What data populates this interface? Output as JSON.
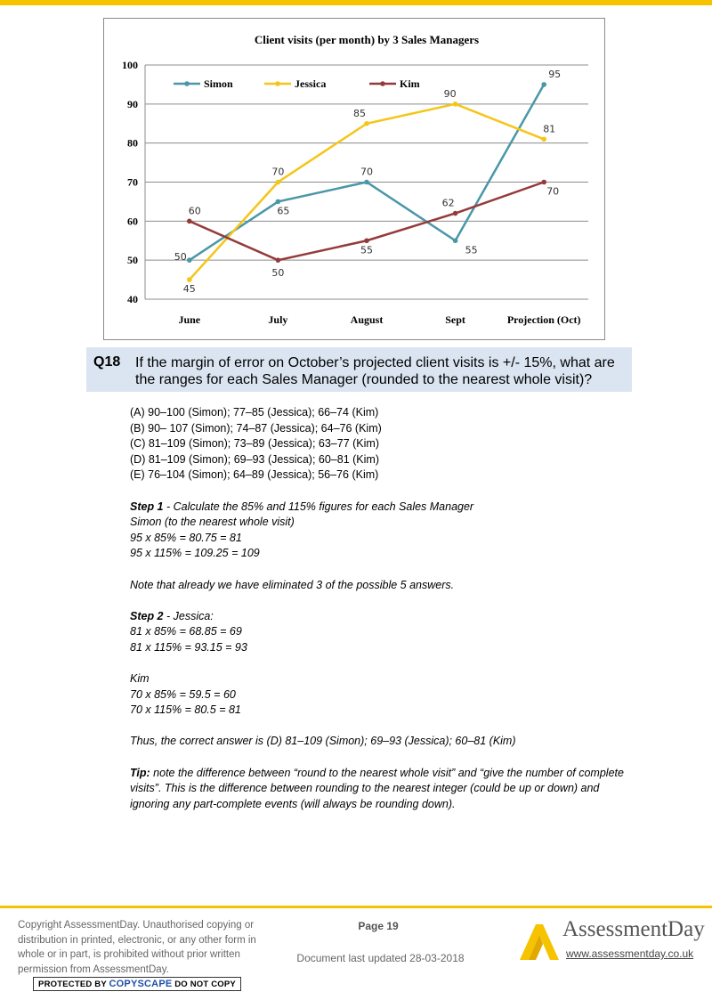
{
  "chart_data": {
    "type": "line",
    "title": "Client visits (per month) by 3 Sales Managers",
    "categories": [
      "June",
      "July",
      "August",
      "Sept",
      "Projection (Oct)"
    ],
    "ylim": [
      40,
      100
    ],
    "yticks": [
      40,
      50,
      60,
      70,
      80,
      90,
      100
    ],
    "grid": true,
    "legend": "top-left",
    "series": [
      {
        "name": "Simon",
        "color": "#4a97a8",
        "values": [
          50,
          65,
          70,
          55,
          95
        ]
      },
      {
        "name": "Jessica",
        "color": "#f5c518",
        "values": [
          45,
          70,
          85,
          90,
          81
        ]
      },
      {
        "name": "Kim",
        "color": "#953a3a",
        "values": [
          60,
          50,
          55,
          62,
          70
        ]
      }
    ]
  },
  "question": {
    "number": "Q18",
    "text": "If the margin of error on October’s projected client visits is +/- 15%, what are the ranges for each Sales Manager (rounded to the nearest whole visit)?"
  },
  "options": [
    "(A) 90–100 (Simon); 77–85 (Jessica); 66–74 (Kim)",
    "(B) 90– 107 (Simon); 74–87 (Jessica); 64–76 (Kim)",
    "(C) 81–109 (Simon); 73–89 (Jessica); 63–77 (Kim)",
    "(D) 81–109 (Simon); 69–93 (Jessica); 60–81 (Kim)",
    "(E) 76–104 (Simon); 64–89 (Jessica); 56–76 (Kim)"
  ],
  "solution": {
    "step1_label": "Step 1",
    "step1_text": " - Calculate the 85% and 115% figures for each Sales Manager",
    "simon_label": "Simon (to the nearest whole visit)",
    "simon_calc1": "95 x 85% = 80.75 = 81",
    "simon_calc2": "95 x 115% = 109.25 = 109",
    "note": "Note that already we have eliminated 3 of the possible 5 answers.",
    "step2_label": "Step 2",
    "step2_text": " - Jessica:",
    "jessica_calc1": "81 x 85% = 68.85 = 69",
    "jessica_calc2": "81 x 115% = 93.15 = 93",
    "kim_label": "Kim",
    "kim_calc1": "70 x 85% = 59.5 = 60",
    "kim_calc2": "70 x 115% = 80.5 = 81",
    "conclusion": "Thus, the correct answer is (D) 81–109 (Simon); 69–93 (Jessica); 60–81 (Kim)",
    "tip_label": "Tip:",
    "tip_text": " note the difference between “round to the nearest whole visit” and “give the number of complete visits”. This is the difference between rounding to the nearest integer (could be up or down) and ignoring any part-complete events (will always be rounding down)."
  },
  "footer": {
    "copyright": "Copyright AssessmentDay. Unauthorised copying or distribution in printed, electronic, or any other form in whole or in part, is prohibited without prior written permission from AssessmentDay.",
    "copyscape_prefix": "PROTECTED BY ",
    "copyscape_brand": "COPYSCAPE",
    "copyscape_suffix": " DO NOT COPY",
    "page": "Page 19",
    "updated": "Document last updated 28-03-2018",
    "logo_text": "AssessmentDay",
    "logo_url": "www.assessmentday.co.uk",
    "brand_color": "#f6c300"
  }
}
